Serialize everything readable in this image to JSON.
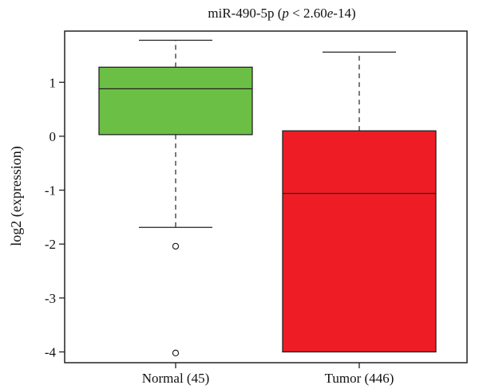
{
  "chart_data": {
    "type": "box",
    "title_main": "miR-490-5p (",
    "title_p": "p",
    "title_mid": " < 2.60",
    "title_e": "e",
    "title_tail": "-14)",
    "ylabel": "log2 (expression)",
    "xlabel": "",
    "ylim": [
      -4.2,
      1.95
    ],
    "yticks": [
      1,
      0,
      -1,
      -2,
      -3,
      -4
    ],
    "ytick_labels": [
      "1",
      "0",
      "-1",
      "-2",
      "-3",
      "-4"
    ],
    "grid": false,
    "groups": [
      {
        "label": "Normal (45)",
        "color": "#6cbf45",
        "whisker_low": -1.69,
        "q1": 0.03,
        "median": 0.88,
        "q3": 1.28,
        "whisker_high": 1.78,
        "outliers": [
          -2.04,
          -4.02
        ]
      },
      {
        "label": "Tumor (446)",
        "color": "#ee1c25",
        "whisker_low": -4.0,
        "q1": -4.0,
        "median": -1.06,
        "q3": 0.1,
        "whisker_high": 1.56,
        "outliers": []
      }
    ]
  }
}
